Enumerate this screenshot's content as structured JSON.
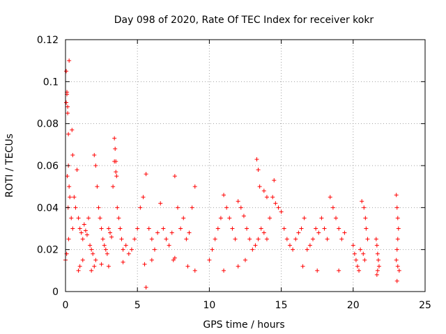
{
  "chart_data": {
    "type": "scatter",
    "title": "Day 098 of 2020, Rate Of TEC Index for receiver kokr",
    "xlabel": "GPS time / hours",
    "ylabel": "ROTI / TECUs",
    "xlim": [
      0,
      25
    ],
    "ylim": [
      0,
      0.12
    ],
    "x_ticks": [
      0,
      5,
      10,
      15,
      20,
      25
    ],
    "x_tick_labels": [
      "0",
      "5",
      "10",
      "15",
      "20",
      "25"
    ],
    "y_ticks": [
      0,
      0.02,
      0.04,
      0.06,
      0.08,
      0.1,
      0.12
    ],
    "y_tick_labels": [
      "0",
      "0.02",
      "0.04",
      "0.06",
      "0.08",
      "0.1",
      "0.12"
    ],
    "grid": true,
    "marker": "plus",
    "series": [
      {
        "color": "#ff0000",
        "x": [
          0.0,
          0.05,
          0.1,
          0.15,
          0.2,
          0.25,
          0.3,
          0.4,
          0.5,
          0.05,
          0.1,
          0.15,
          0.2,
          0.12,
          0.18,
          0.22,
          0.08,
          0.25,
          0.45,
          0.5,
          0.6,
          0.7,
          0.8,
          0.9,
          1.0,
          1.1,
          1.2,
          1.3,
          1.4,
          1.5,
          1.6,
          1.7,
          1.8,
          1.9,
          2.0,
          2.1,
          2.2,
          2.3,
          2.4,
          2.5,
          2.6,
          2.7,
          2.8,
          2.9,
          3.0,
          3.1,
          3.2,
          3.3,
          3.4,
          3.5,
          3.6,
          3.7,
          3.8,
          3.9,
          4.0,
          4.2,
          4.4,
          4.6,
          4.8,
          5.0,
          5.2,
          5.4,
          5.6,
          5.8,
          6.0,
          6.2,
          6.4,
          6.6,
          6.8,
          7.0,
          7.2,
          7.4,
          7.6,
          7.8,
          8.0,
          8.2,
          8.4,
          8.6,
          8.8,
          9.0,
          2.0,
          2.1,
          3.4,
          3.45,
          3.5,
          3.55,
          0.9,
          1.0,
          1.2,
          1.8,
          2.5,
          3.0,
          4.0,
          5.5,
          5.6,
          6.0,
          7.5,
          7.6,
          8.5,
          9.0,
          10.0,
          10.2,
          10.4,
          10.6,
          10.8,
          11.0,
          11.2,
          11.4,
          11.6,
          11.8,
          12.0,
          12.2,
          12.4,
          12.6,
          12.8,
          13.0,
          13.2,
          13.4,
          13.6,
          13.8,
          14.0,
          14.2,
          14.4,
          14.6,
          14.8,
          15.0,
          15.2,
          15.4,
          15.6,
          15.8,
          16.0,
          16.2,
          16.4,
          16.6,
          16.8,
          17.0,
          17.2,
          17.4,
          17.6,
          17.8,
          18.0,
          18.2,
          18.4,
          18.6,
          18.8,
          19.0,
          19.2,
          19.4,
          13.3,
          13.4,
          13.5,
          13.8,
          14.0,
          14.5,
          11.0,
          12.0,
          12.5,
          16.5,
          17.5,
          19.0,
          20.0,
          20.1,
          20.2,
          20.3,
          20.4,
          20.5,
          20.7,
          20.8,
          20.9,
          21.0,
          20.6,
          20.75,
          20.85,
          21.6,
          21.65,
          21.7,
          21.75,
          21.8,
          21.7,
          21.65,
          23.0,
          23.05,
          23.1,
          23.15,
          23.1,
          23.05,
          23.0,
          23.1,
          23.2,
          23.05
        ],
        "y": [
          0.015,
          0.105,
          0.094,
          0.088,
          0.06,
          0.05,
          0.045,
          0.035,
          0.03,
          0.09,
          0.095,
          0.085,
          0.075,
          0.055,
          0.04,
          0.025,
          0.018,
          0.11,
          0.077,
          0.065,
          0.045,
          0.04,
          0.058,
          0.035,
          0.03,
          0.028,
          0.025,
          0.032,
          0.029,
          0.027,
          0.035,
          0.022,
          0.02,
          0.018,
          0.065,
          0.06,
          0.05,
          0.04,
          0.035,
          0.03,
          0.025,
          0.022,
          0.02,
          0.018,
          0.03,
          0.028,
          0.026,
          0.05,
          0.062,
          0.057,
          0.04,
          0.035,
          0.03,
          0.025,
          0.02,
          0.022,
          0.018,
          0.02,
          0.025,
          0.03,
          0.04,
          0.045,
          0.056,
          0.03,
          0.025,
          0.02,
          0.028,
          0.042,
          0.03,
          0.025,
          0.022,
          0.028,
          0.055,
          0.04,
          0.03,
          0.035,
          0.025,
          0.028,
          0.04,
          0.05,
          0.012,
          0.015,
          0.073,
          0.068,
          0.062,
          0.055,
          0.01,
          0.012,
          0.015,
          0.01,
          0.013,
          0.012,
          0.014,
          0.013,
          0.002,
          0.015,
          0.015,
          0.016,
          0.012,
          0.01,
          0.015,
          0.02,
          0.025,
          0.03,
          0.035,
          0.046,
          0.04,
          0.035,
          0.03,
          0.025,
          0.043,
          0.04,
          0.036,
          0.03,
          0.025,
          0.02,
          0.022,
          0.025,
          0.03,
          0.028,
          0.025,
          0.035,
          0.045,
          0.042,
          0.04,
          0.038,
          0.03,
          0.025,
          0.022,
          0.02,
          0.025,
          0.028,
          0.03,
          0.035,
          0.02,
          0.022,
          0.025,
          0.03,
          0.028,
          0.035,
          0.03,
          0.025,
          0.045,
          0.04,
          0.035,
          0.03,
          0.025,
          0.028,
          0.063,
          0.058,
          0.05,
          0.048,
          0.045,
          0.053,
          0.01,
          0.012,
          0.015,
          0.012,
          0.01,
          0.01,
          0.022,
          0.018,
          0.015,
          0.012,
          0.01,
          0.02,
          0.018,
          0.015,
          0.03,
          0.025,
          0.043,
          0.04,
          0.035,
          0.025,
          0.022,
          0.018,
          0.015,
          0.012,
          0.01,
          0.008,
          0.046,
          0.04,
          0.035,
          0.03,
          0.025,
          0.02,
          0.015,
          0.012,
          0.01,
          0.005
        ]
      }
    ]
  }
}
